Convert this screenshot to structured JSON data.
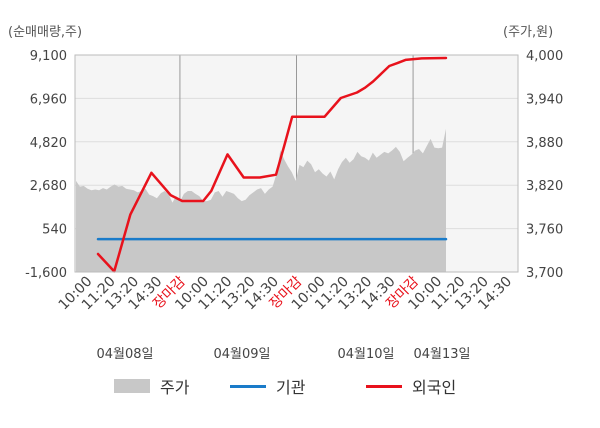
{
  "chart_data": {
    "type": "line",
    "left_axis_label": "(순매매량,주)",
    "right_axis_label": "(주가,원)",
    "y_left_ticks": [
      "9,100",
      "6,960",
      "4,820",
      "2,680",
      "540",
      "-1,600"
    ],
    "y_right_ticks": [
      "4,000",
      "3,940",
      "3,880",
      "3,820",
      "3,760",
      "3,700"
    ],
    "y_left_range": [
      -1600,
      9100
    ],
    "y_right_range": [
      3700,
      4000
    ],
    "x_tick_labels": [
      "10:00",
      "11:20",
      "13:20",
      "14:30",
      "장마감",
      "10:00",
      "11:20",
      "13:20",
      "14:30",
      "장마감",
      "10:00",
      "11:20",
      "13:20",
      "14:30",
      "장마감",
      "10:00",
      "11:20",
      "13:20",
      "14:30"
    ],
    "close_tick_label": "장마감",
    "date_labels": [
      "04월08일",
      "04월09일",
      "04월10일",
      "04월13일"
    ],
    "series": [
      {
        "name": "주가",
        "type": "area",
        "color": "#c8c8c8",
        "values": [
          3826,
          3818,
          3819,
          3815,
          3813,
          3814,
          3813,
          3816,
          3814,
          3818,
          3821,
          3818,
          3819,
          3815,
          3814,
          3813,
          3810,
          3812,
          3815,
          3807,
          3805,
          3802,
          3809,
          3812,
          3808,
          3796,
          3805,
          3798,
          3808,
          3812,
          3812,
          3808,
          3805,
          3798,
          3798,
          3800,
          3810,
          3812,
          3804,
          3812,
          3810,
          3808,
          3802,
          3798,
          3800,
          3806,
          3810,
          3814,
          3816,
          3808,
          3814,
          3818,
          3835,
          3868,
          3856,
          3846,
          3838,
          3826,
          3848,
          3845,
          3854,
          3849,
          3838,
          3842,
          3836,
          3832,
          3839,
          3828,
          3842,
          3852,
          3858,
          3851,
          3856,
          3866,
          3860,
          3858,
          3854,
          3865,
          3858,
          3862,
          3866,
          3864,
          3868,
          3873,
          3866,
          3853,
          3858,
          3862,
          3868,
          3870,
          3864,
          3874,
          3884,
          3872,
          3871,
          3872,
          3898
        ]
      },
      {
        "name": "기관",
        "type": "line",
        "axis": "left",
        "color": "#1a7bc9",
        "x": [
          0,
          21.5
        ],
        "values": [
          20,
          20
        ]
      },
      {
        "name": "외국인",
        "type": "line",
        "axis": "left",
        "color": "#e8121c",
        "x": [
          0,
          1,
          2,
          3.3,
          4.5,
          5.2,
          6.5,
          7,
          8,
          9,
          10,
          11,
          11.5,
          12,
          13,
          14,
          15,
          16,
          16.5,
          17,
          18,
          18.5,
          19,
          20,
          21.5
        ],
        "values": [
          -710,
          -1570,
          1240,
          3290,
          2180,
          1900,
          1900,
          2400,
          4200,
          3060,
          3060,
          3200,
          4600,
          6060,
          6060,
          6060,
          6980,
          7250,
          7490,
          7800,
          8560,
          8700,
          8860,
          8930,
          8950
        ]
      }
    ],
    "legend_placement": "bottom",
    "grid": true
  },
  "legend": [
    {
      "label": "주가",
      "color": "#c8c8c8",
      "kind": "box"
    },
    {
      "label": "기관",
      "color": "#1a7bc9",
      "kind": "line"
    },
    {
      "label": "외국인",
      "color": "#e8121c",
      "kind": "line"
    }
  ]
}
